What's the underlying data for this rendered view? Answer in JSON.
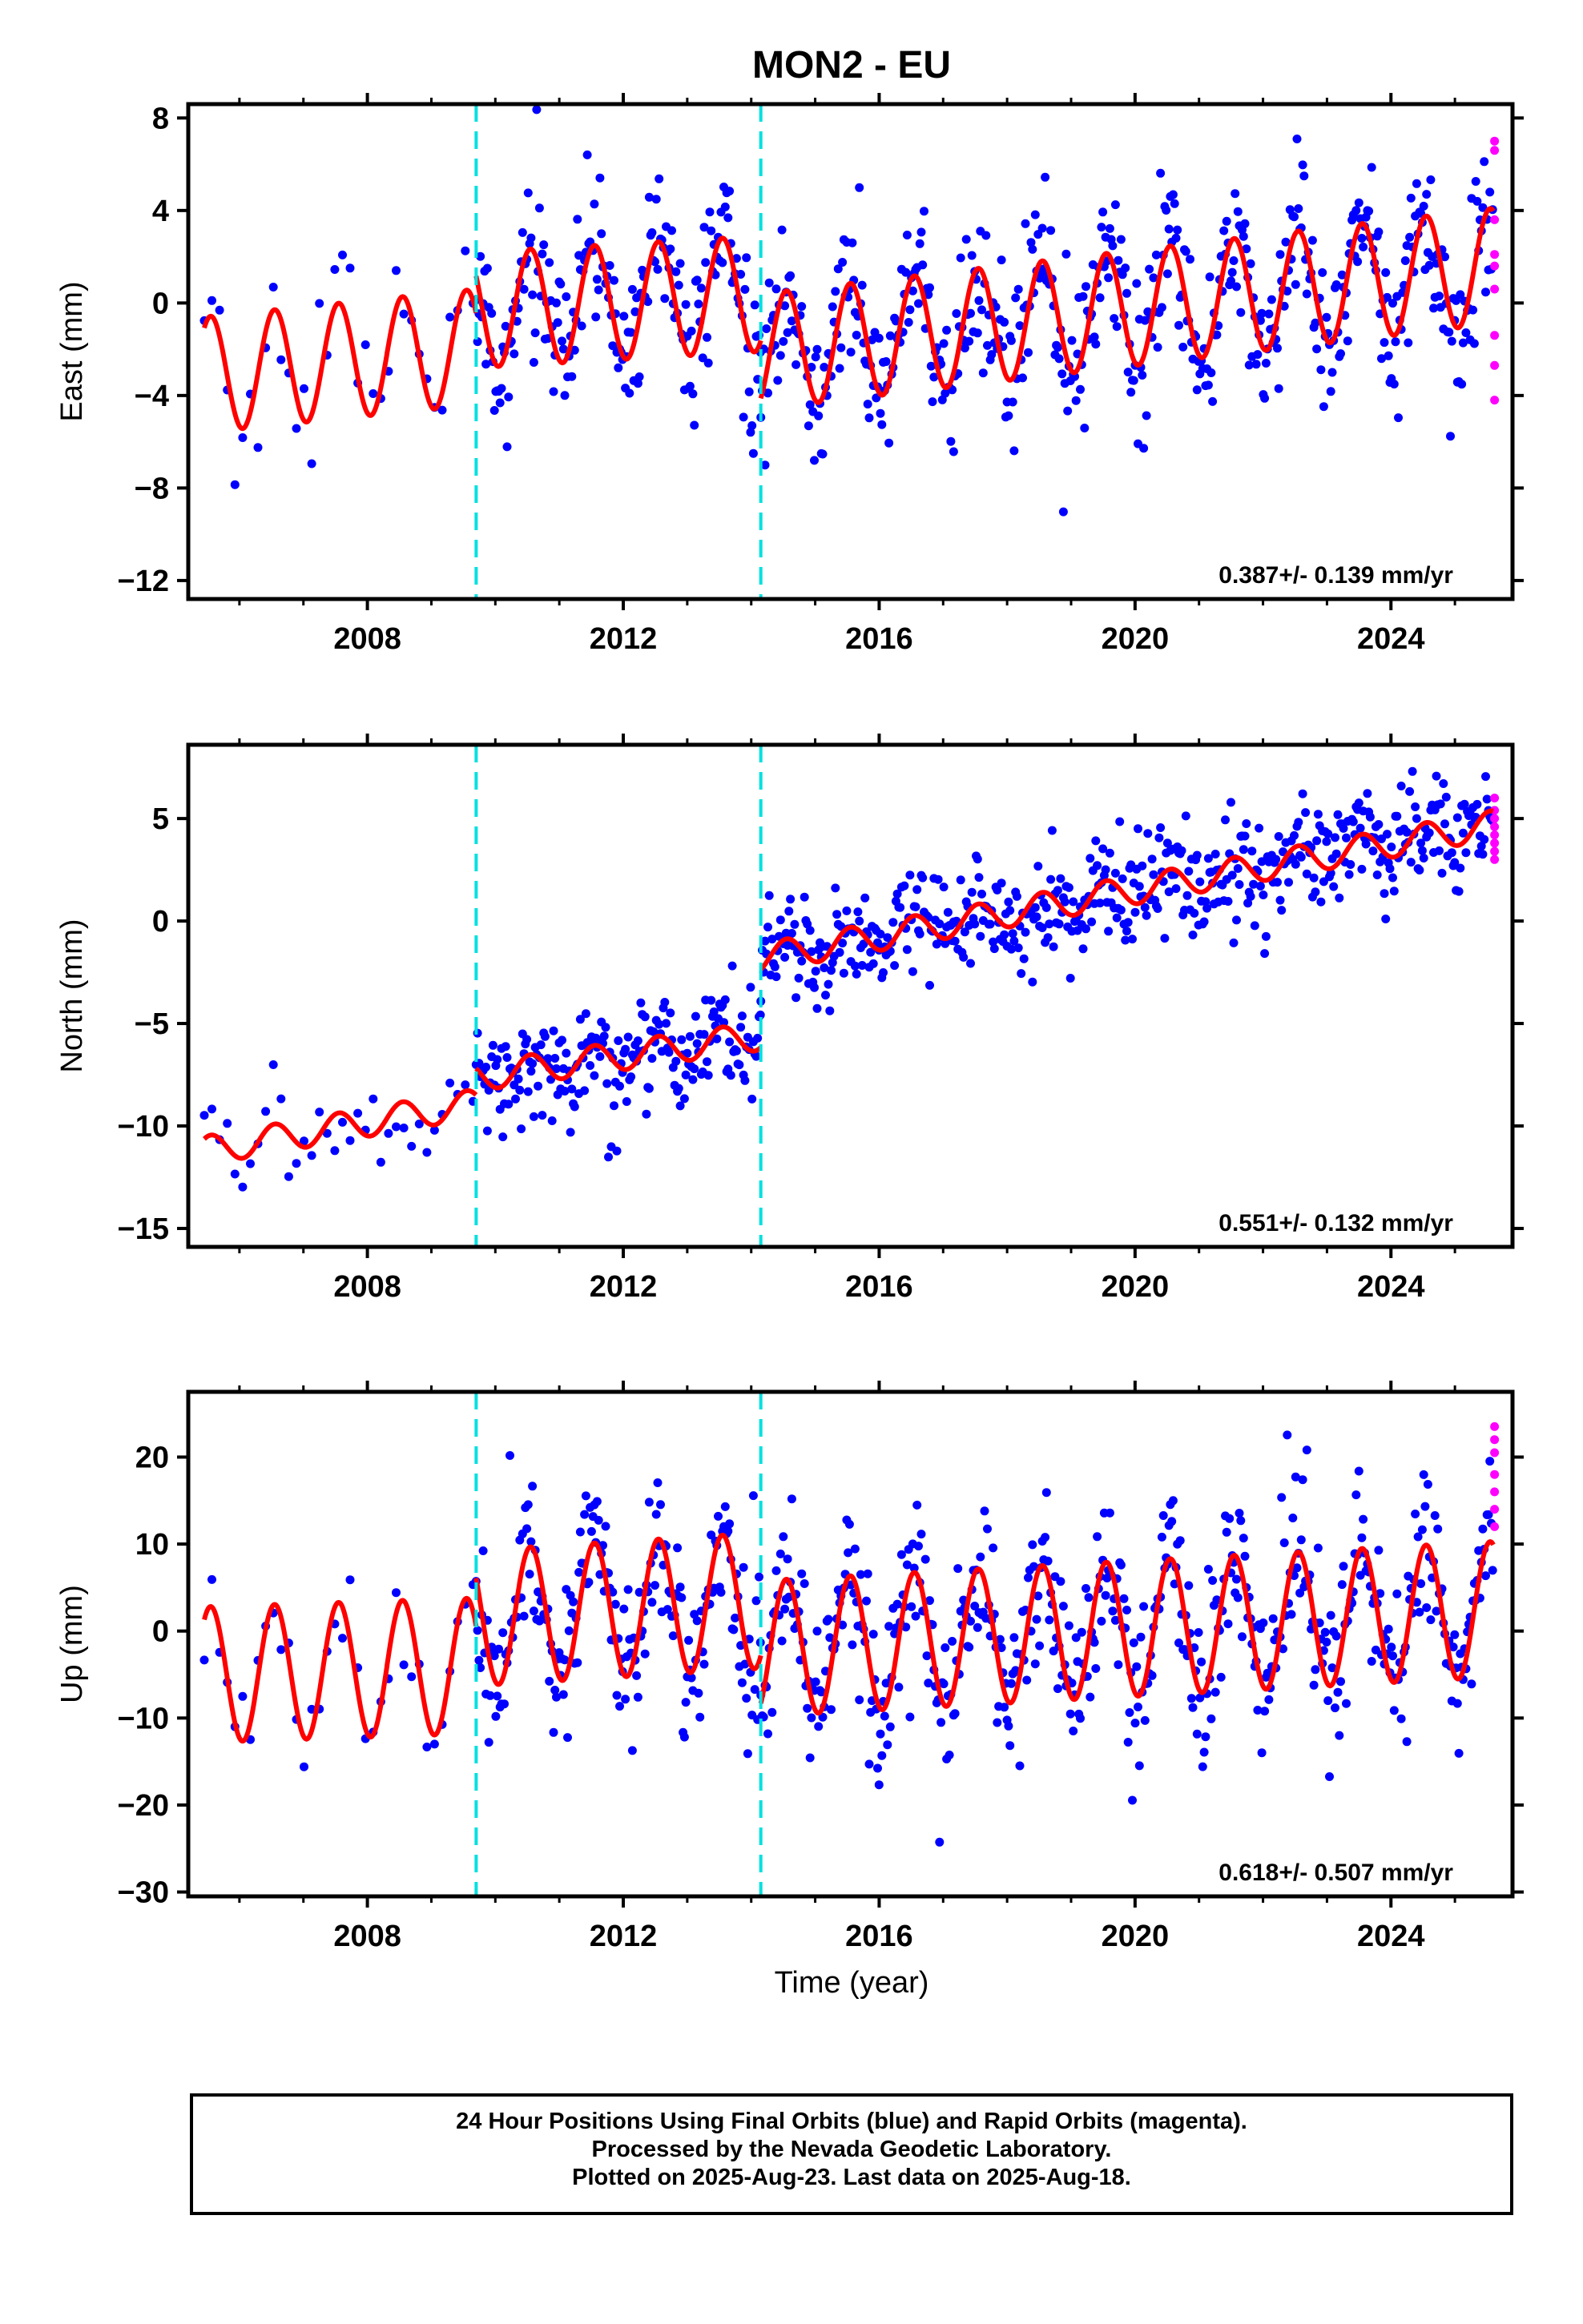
{
  "figure": {
    "title": "MON2 - EU",
    "xlabel": "Time (year)",
    "caption": [
      "24 Hour Positions Using Final Orbits (blue) and Rapid Orbits (magenta).",
      "Processed by the Nevada Geodetic Laboratory.",
      "Plotted on 2025-Aug-23. Last data on 2025-Aug-18."
    ],
    "colors": {
      "final_orbits": "#0000ff",
      "rapid_orbits": "#ff00ff",
      "model": "#ff0000",
      "breaks": "#00e0e0"
    }
  },
  "chart_data": [
    {
      "type": "scatter",
      "component": "East",
      "ylabel": "East (mm)",
      "xlim": [
        2005.2,
        2025.9
      ],
      "ylim": [
        -12.8,
        8.6
      ],
      "yticks": [
        -12,
        -8,
        -4,
        0,
        4,
        8
      ],
      "xticks": [
        2008,
        2012,
        2016,
        2020,
        2024
      ],
      "breaks": [
        2009.7,
        2014.15
      ],
      "rate_label": "0.387+/- 0.139 mm/yr",
      "model": {
        "amplitude": 2.5,
        "segments": [
          {
            "start": 2005.45,
            "end": 2009.7,
            "offset_start": -3.1,
            "offset_end": -1.9
          },
          {
            "start": 2009.7,
            "end": 2014.15,
            "offset_start": -0.3,
            "offset_end": 0.4
          },
          {
            "start": 2014.15,
            "end": 2025.6,
            "offset_start": -2.1,
            "offset_end": 1.6
          }
        ]
      },
      "scatter_sigma": 1.6,
      "rapid_orbits_points": [
        7.0,
        6.6,
        3.6,
        2.1,
        1.6,
        0.6,
        -1.4,
        -2.7,
        -4.2
      ]
    },
    {
      "type": "scatter",
      "component": "North",
      "ylabel": "North (mm)",
      "xlim": [
        2005.2,
        2025.9
      ],
      "ylim": [
        -15.9,
        8.6
      ],
      "yticks": [
        -15,
        -10,
        -5,
        0,
        5
      ],
      "xticks": [
        2008,
        2012,
        2016,
        2020,
        2024
      ],
      "breaks": [
        2009.7,
        2014.15
      ],
      "rate_label": "0.551+/- 0.132 mm/yr",
      "model": {
        "amplitude": 0.7,
        "segments": [
          {
            "start": 2005.45,
            "end": 2009.7,
            "offset_start": -11.2,
            "offset_end": -8.9
          },
          {
            "start": 2009.7,
            "end": 2014.15,
            "offset_start": -7.6,
            "offset_end": -5.6
          },
          {
            "start": 2014.15,
            "end": 2025.6,
            "offset_start": -1.8,
            "offset_end": 4.7
          }
        ]
      },
      "scatter_sigma": 1.3,
      "rapid_orbits_points": [
        6.0,
        5.4,
        5.0,
        4.6,
        4.2,
        3.8,
        3.4,
        3.0
      ]
    },
    {
      "type": "scatter",
      "component": "Up",
      "ylabel": "Up (mm)",
      "xlim": [
        2005.2,
        2025.9
      ],
      "ylim": [
        -30.5,
        27.5
      ],
      "yticks": [
        -30,
        -20,
        -10,
        0,
        10,
        20
      ],
      "xticks": [
        2008,
        2012,
        2016,
        2020,
        2024
      ],
      "breaks": [
        2009.7,
        2014.15
      ],
      "rate_label": "0.618+/- 0.507 mm/yr",
      "model": {
        "amplitude": 7.8,
        "segments": [
          {
            "start": 2005.45,
            "end": 2009.7,
            "offset_start": -5.0,
            "offset_end": -4.0
          },
          {
            "start": 2009.7,
            "end": 2014.15,
            "offset_start": 1.5,
            "offset_end": 3.5
          },
          {
            "start": 2014.15,
            "end": 2025.6,
            "offset_start": -2.0,
            "offset_end": 2.5
          }
        ]
      },
      "scatter_sigma": 4.5,
      "rapid_orbits_points": [
        23.5,
        22.0,
        20.5,
        18.0,
        16.0,
        14.0,
        12.0
      ]
    }
  ]
}
